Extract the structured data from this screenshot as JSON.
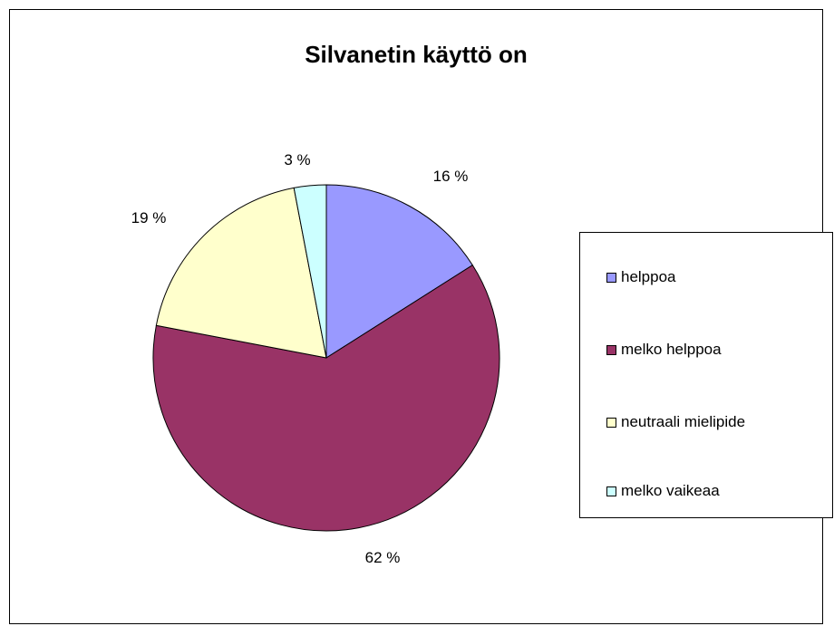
{
  "chart_data": {
    "type": "pie",
    "title": "Silvanetin käyttö on",
    "legend_position": "right",
    "categories": [
      "helppoa",
      "melko helppoa",
      "neutraali mielipide",
      "melko vaikeaa"
    ],
    "values": [
      16,
      62,
      19,
      3
    ],
    "data_labels": [
      "16 %",
      "62 %",
      "19 %",
      "3 %"
    ],
    "colors": [
      "#9999ff",
      "#993366",
      "#ffffcc",
      "#ccffff"
    ]
  }
}
